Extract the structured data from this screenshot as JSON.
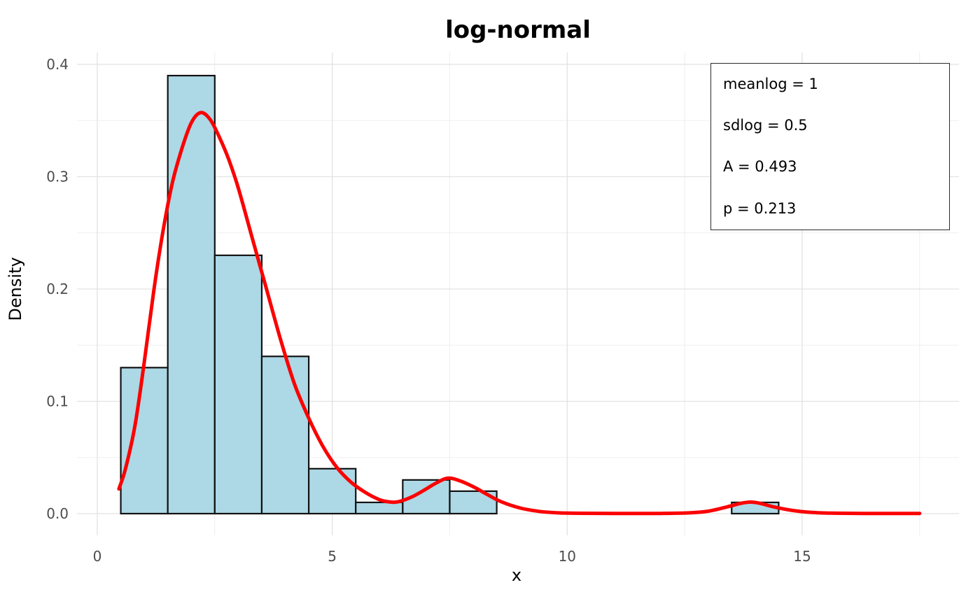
{
  "chart": {
    "title": "log-normal",
    "xlabel": "x",
    "ylabel": "Density"
  },
  "annotation": {
    "lines": [
      "meanlog = 1",
      "sdlog = 0.5",
      "A = 0.493",
      "p = 0.213"
    ]
  },
  "chart_data": {
    "type": "histogram_with_density",
    "title": "log-normal",
    "xlabel": "x",
    "ylabel": "Density",
    "xlim": [
      -0.43,
      18.35
    ],
    "ylim": [
      -0.019,
      0.437
    ],
    "grid": "both-major-and-minor",
    "x_ticks": [
      0,
      5,
      10,
      15
    ],
    "x_tick_labels": [
      "0",
      "5",
      "10",
      "15"
    ],
    "x_minor_ticks": [
      2.5,
      7.5,
      12.5,
      17.5
    ],
    "y_ticks": [
      0,
      0.1,
      0.2,
      0.3,
      0.4
    ],
    "y_tick_labels": [
      "0.0",
      "0.1",
      "0.2",
      "0.3",
      "0.4"
    ],
    "y_minor_ticks": [
      0.05,
      0.15,
      0.25,
      0.35
    ],
    "bars": [
      {
        "x0": 0.5,
        "x1": 1.5,
        "density": 0.13
      },
      {
        "x0": 1.5,
        "x1": 2.5,
        "density": 0.39
      },
      {
        "x0": 2.5,
        "x1": 3.5,
        "density": 0.23
      },
      {
        "x0": 3.5,
        "x1": 4.5,
        "density": 0.14
      },
      {
        "x0": 4.5,
        "x1": 5.5,
        "density": 0.04
      },
      {
        "x0": 5.5,
        "x1": 6.5,
        "density": 0.01
      },
      {
        "x0": 6.5,
        "x1": 7.5,
        "density": 0.03
      },
      {
        "x0": 7.5,
        "x1": 8.5,
        "density": 0.02
      },
      {
        "x0": 13.5,
        "x1": 14.5,
        "density": 0.01
      }
    ],
    "density_curve": [
      [
        0.46,
        0.022
      ],
      [
        0.6,
        0.04
      ],
      [
        0.8,
        0.078
      ],
      [
        1.0,
        0.135
      ],
      [
        1.2,
        0.198
      ],
      [
        1.4,
        0.252
      ],
      [
        1.6,
        0.295
      ],
      [
        1.8,
        0.325
      ],
      [
        2.0,
        0.348
      ],
      [
        2.2,
        0.357
      ],
      [
        2.4,
        0.351
      ],
      [
        2.6,
        0.335
      ],
      [
        2.8,
        0.315
      ],
      [
        3.0,
        0.29
      ],
      [
        3.3,
        0.245
      ],
      [
        3.6,
        0.2
      ],
      [
        3.9,
        0.155
      ],
      [
        4.2,
        0.115
      ],
      [
        4.5,
        0.085
      ],
      [
        4.8,
        0.06
      ],
      [
        5.1,
        0.041
      ],
      [
        5.4,
        0.028
      ],
      [
        5.7,
        0.019
      ],
      [
        6.0,
        0.0125
      ],
      [
        6.2,
        0.0105
      ],
      [
        6.4,
        0.0105
      ],
      [
        6.7,
        0.015
      ],
      [
        7.0,
        0.022
      ],
      [
        7.2,
        0.027
      ],
      [
        7.45,
        0.0315
      ],
      [
        7.7,
        0.0295
      ],
      [
        8.0,
        0.024
      ],
      [
        8.3,
        0.017
      ],
      [
        8.6,
        0.0105
      ],
      [
        9.0,
        0.005
      ],
      [
        9.4,
        0.002
      ],
      [
        9.8,
        0.0007
      ],
      [
        10.3,
        0.0003
      ],
      [
        11.0,
        0.0002
      ],
      [
        12.0,
        0.0002
      ],
      [
        12.6,
        0.0007
      ],
      [
        13.0,
        0.0022
      ],
      [
        13.4,
        0.006
      ],
      [
        13.7,
        0.0092
      ],
      [
        13.9,
        0.0103
      ],
      [
        14.1,
        0.0092
      ],
      [
        14.4,
        0.006
      ],
      [
        14.8,
        0.0028
      ],
      [
        15.2,
        0.0011
      ],
      [
        15.7,
        0.0004
      ],
      [
        16.3,
        0.0002
      ],
      [
        17.0,
        0.0002
      ],
      [
        17.5,
        0.0002
      ]
    ],
    "colors": {
      "bar_fill": "#ADD8E6",
      "bar_stroke": "#121212",
      "curve": "#FB0000",
      "grid_major": "#E2E2E2",
      "grid_minor": "#EFEFEF",
      "tick_label": "#4D4D4D"
    }
  }
}
